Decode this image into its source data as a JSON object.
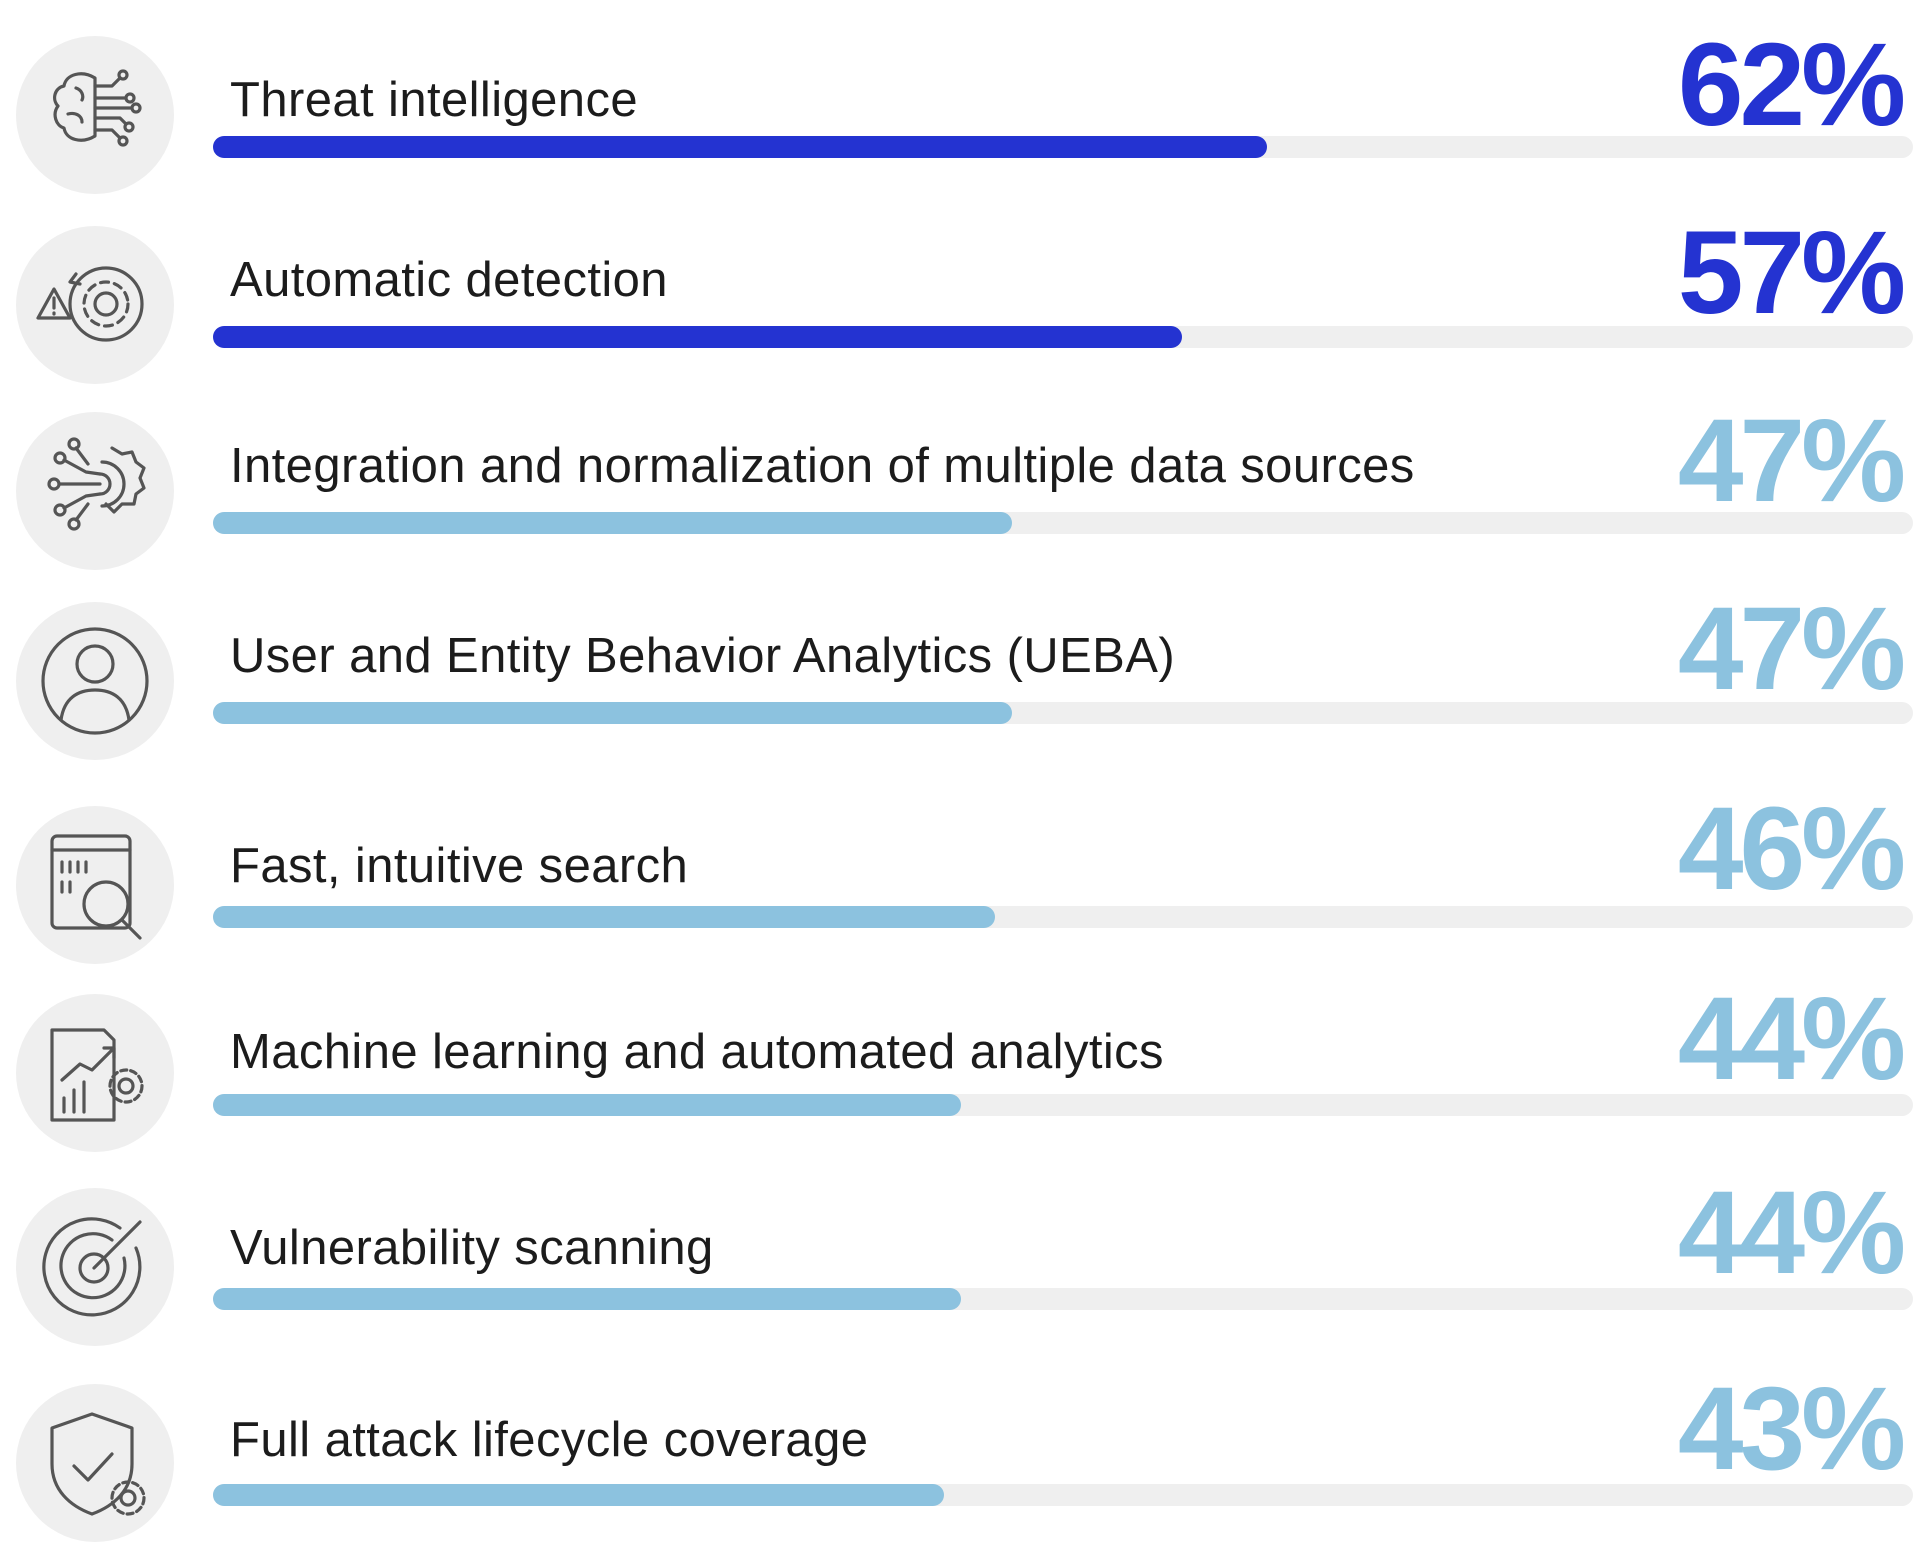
{
  "chart_data": {
    "type": "bar",
    "orientation": "horizontal",
    "value_format": "percent",
    "xlim": [
      0,
      100
    ],
    "colors": {
      "highlight": "#2433d1",
      "standard": "#8cc2df",
      "track": "#efefef",
      "icon_bg": "#efefef"
    },
    "categories": [
      "Threat intelligence",
      "Automatic detection",
      "Integration and normalization of multiple data sources",
      "User and Entity Behavior Analytics (UEBA)",
      "Fast, intuitive search",
      "Machine learning and automated analytics",
      "Vulnerability scanning",
      "Full attack lifecycle coverage"
    ],
    "values": [
      62,
      57,
      47,
      47,
      46,
      44,
      44,
      43
    ],
    "labels": [
      "62%",
      "57%",
      "47%",
      "47%",
      "46%",
      "44%",
      "44%",
      "43%"
    ],
    "highlighted": [
      true,
      true,
      false,
      false,
      false,
      false,
      false,
      false
    ],
    "icons": [
      "brain-circuit-icon",
      "alert-gear-icon",
      "integration-gear-icon",
      "user-icon",
      "data-search-icon",
      "analytics-gear-icon",
      "radar-icon",
      "shield-check-gear-icon"
    ]
  }
}
